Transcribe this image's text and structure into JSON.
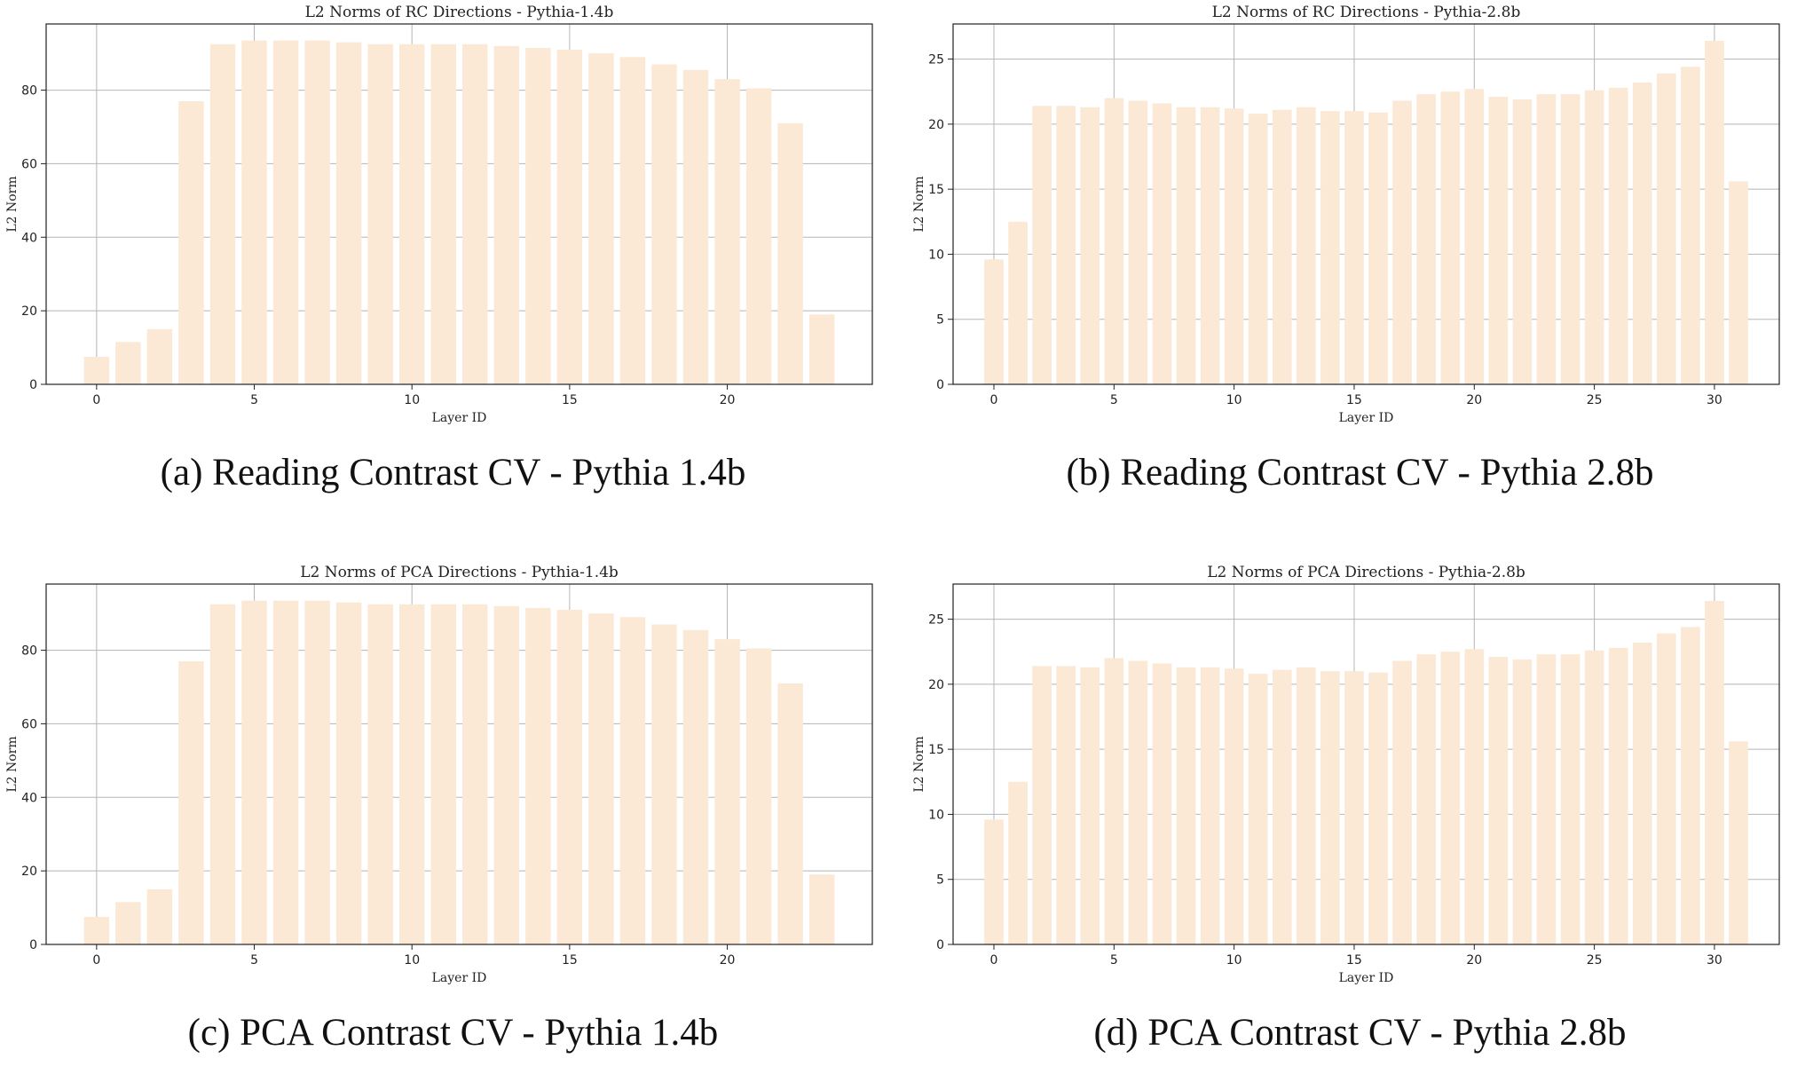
{
  "captions": [
    "(a) Reading Contrast CV - Pythia 1.4b",
    "(b) Reading Contrast CV - Pythia 2.8b",
    "(c) PCA Contrast CV - Pythia 1.4b",
    "(d) PCA Contrast CV - Pythia 2.8b"
  ],
  "colors": {
    "bar": "#fbe8d5"
  },
  "chart_data": [
    {
      "type": "bar",
      "title": "L2 Norms of RC Directions - Pythia-1.4b",
      "xlabel": "Layer ID",
      "ylabel": "L2 Norm",
      "x": [
        0,
        1,
        2,
        3,
        4,
        5,
        6,
        7,
        8,
        9,
        10,
        11,
        12,
        13,
        14,
        15,
        16,
        17,
        18,
        19,
        20,
        21,
        22,
        23
      ],
      "values": [
        7.5,
        11.5,
        15,
        77,
        92.5,
        93.5,
        93.5,
        93.5,
        93,
        92.5,
        92.5,
        92.5,
        92.5,
        92,
        91.5,
        91,
        90,
        89,
        87,
        85.5,
        83,
        80.5,
        71,
        19
      ],
      "xlim": [
        -1.6,
        24.6
      ],
      "ylim": [
        0,
        98
      ],
      "xticks": [
        0,
        5,
        10,
        15,
        20
      ],
      "yticks": [
        0,
        20,
        40,
        60,
        80
      ],
      "grid": true
    },
    {
      "type": "bar",
      "title": "L2 Norms of RC Directions - Pythia-2.8b",
      "xlabel": "Layer ID",
      "ylabel": "L2 Norm",
      "x": [
        0,
        1,
        2,
        3,
        4,
        5,
        6,
        7,
        8,
        9,
        10,
        11,
        12,
        13,
        14,
        15,
        16,
        17,
        18,
        19,
        20,
        21,
        22,
        23,
        24,
        25,
        26,
        27,
        28,
        29,
        30,
        31
      ],
      "values": [
        9.6,
        12.5,
        21.4,
        21.4,
        21.3,
        22,
        21.8,
        21.6,
        21.3,
        21.3,
        21.2,
        20.8,
        21.1,
        21.3,
        21,
        21,
        20.9,
        21.8,
        22.3,
        22.5,
        22.7,
        22.1,
        21.9,
        22.3,
        22.3,
        22.6,
        22.8,
        23.2,
        23.9,
        24.4,
        26.4,
        15.6
      ],
      "xlim": [
        -1.7,
        32.7
      ],
      "ylim": [
        0,
        27.7
      ],
      "xticks": [
        0,
        5,
        10,
        15,
        20,
        25,
        30
      ],
      "yticks": [
        0,
        5,
        10,
        15,
        20,
        25
      ],
      "grid": true
    },
    {
      "type": "bar",
      "title": "L2 Norms of PCA Directions - Pythia-1.4b",
      "xlabel": "Layer ID",
      "ylabel": "L2 Norm",
      "x": [
        0,
        1,
        2,
        3,
        4,
        5,
        6,
        7,
        8,
        9,
        10,
        11,
        12,
        13,
        14,
        15,
        16,
        17,
        18,
        19,
        20,
        21,
        22,
        23
      ],
      "values": [
        7.5,
        11.5,
        15,
        77,
        92.5,
        93.5,
        93.5,
        93.5,
        93,
        92.5,
        92.5,
        92.5,
        92.5,
        92,
        91.5,
        91,
        90,
        89,
        87,
        85.5,
        83,
        80.5,
        71,
        19
      ],
      "xlim": [
        -1.6,
        24.6
      ],
      "ylim": [
        0,
        98
      ],
      "xticks": [
        0,
        5,
        10,
        15,
        20
      ],
      "yticks": [
        0,
        20,
        40,
        60,
        80
      ],
      "grid": true
    },
    {
      "type": "bar",
      "title": "L2 Norms of PCA Directions - Pythia-2.8b",
      "xlabel": "Layer ID",
      "ylabel": "L2 Norm",
      "x": [
        0,
        1,
        2,
        3,
        4,
        5,
        6,
        7,
        8,
        9,
        10,
        11,
        12,
        13,
        14,
        15,
        16,
        17,
        18,
        19,
        20,
        21,
        22,
        23,
        24,
        25,
        26,
        27,
        28,
        29,
        30,
        31
      ],
      "values": [
        9.6,
        12.5,
        21.4,
        21.4,
        21.3,
        22,
        21.8,
        21.6,
        21.3,
        21.3,
        21.2,
        20.8,
        21.1,
        21.3,
        21,
        21,
        20.9,
        21.8,
        22.3,
        22.5,
        22.7,
        22.1,
        21.9,
        22.3,
        22.3,
        22.6,
        22.8,
        23.2,
        23.9,
        24.4,
        26.4,
        15.6
      ],
      "xlim": [
        -1.7,
        32.7
      ],
      "ylim": [
        0,
        27.7
      ],
      "xticks": [
        0,
        5,
        10,
        15,
        20,
        25,
        30
      ],
      "yticks": [
        0,
        5,
        10,
        15,
        20,
        25
      ],
      "grid": true
    }
  ]
}
